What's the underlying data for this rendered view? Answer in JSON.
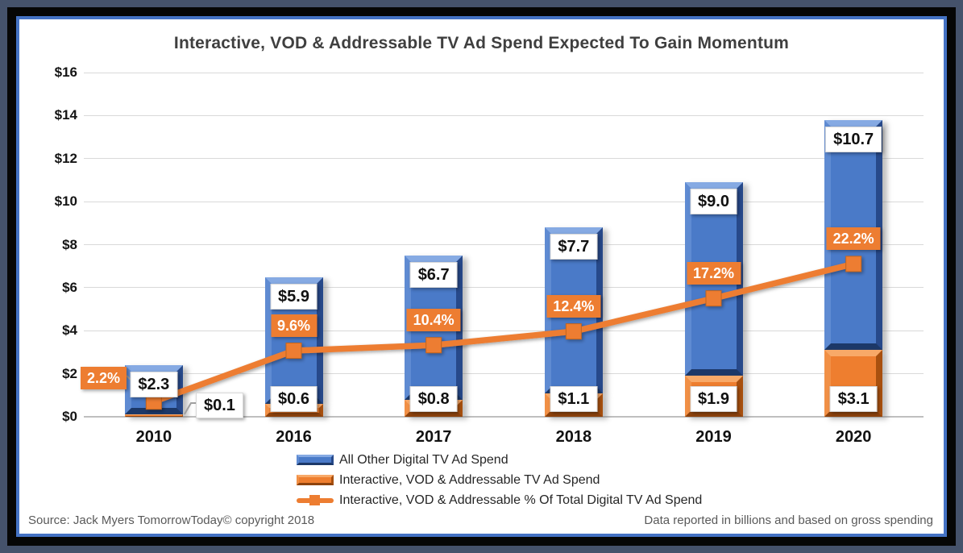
{
  "chart_data": {
    "type": "combo",
    "title": "Interactive, VOD & Addressable TV Ad Spend Expected To Gain Momentum",
    "categories": [
      "2010",
      "2016",
      "2017",
      "2018",
      "2019",
      "2020"
    ],
    "series": [
      {
        "name": "All Other Digital TV Ad Spend",
        "type": "bar",
        "stack": "spend",
        "stack_order": "top",
        "color": "#4472C4",
        "values": [
          2.3,
          5.9,
          6.7,
          7.7,
          9.0,
          10.7
        ],
        "labels": [
          "$2.3",
          "$5.9",
          "$6.7",
          "$7.7",
          "$9.0",
          "$10.7"
        ]
      },
      {
        "name": "Interactive, VOD & Addressable TV Ad Spend",
        "type": "bar",
        "stack": "spend",
        "stack_order": "bottom",
        "color": "#ED7D31",
        "values": [
          0.1,
          0.6,
          0.8,
          1.1,
          1.9,
          3.1
        ],
        "labels": [
          "$0.1",
          "$0.6",
          "$0.8",
          "$1.1",
          "$1.9",
          "$3.1"
        ]
      },
      {
        "name": "Interactive, VOD & Addressable % Of Total Digital TV Ad Spend",
        "type": "line",
        "color": "#ED7D31",
        "unit": "percent",
        "values": [
          2.2,
          9.6,
          10.4,
          12.4,
          17.2,
          22.2
        ],
        "labels": [
          "2.2%",
          "9.6%",
          "10.4%",
          "12.4%",
          "17.2%",
          "22.2%"
        ]
      }
    ],
    "y_axis": {
      "ticks": [
        "$0",
        "$2",
        "$4",
        "$6",
        "$8",
        "$10",
        "$12",
        "$14",
        "$16"
      ],
      "min": 0,
      "max": 16,
      "grid": true
    },
    "legend_position": "bottom"
  },
  "footer": {
    "source": "Source: Jack Myers TomorrowToday© copyright 2018",
    "note": "Data reported in billions and based on gross spending"
  },
  "colors": {
    "bar_blue": "#4472C4",
    "bar_orange": "#ED7D31",
    "line_orange": "#ED7D31",
    "frame_outer": "#45526B",
    "frame_black": "#060606",
    "inner_border": "#4472C4",
    "gridline": "#D9D9D9",
    "title_text": "#3F3F3F",
    "footer_text": "#595959"
  }
}
